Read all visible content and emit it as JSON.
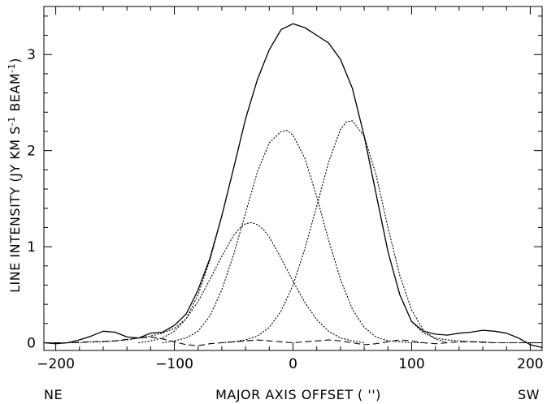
{
  "chart_data": {
    "type": "line",
    "xlabel": "MAJOR AXIS OFFSET ( '')",
    "ylabel": "LINE INTENSITY (JY KM S",
    "ylabel_sup1": "-1",
    "ylabel_mid": " BEAM",
    "ylabel_sup2": "-1",
    "ylabel_end": ")",
    "left_annotation": "NE",
    "right_annotation": "SW",
    "xlim": [
      -210,
      210
    ],
    "ylim": [
      -0.08,
      3.5
    ],
    "x_ticks": [
      -200,
      -100,
      0,
      100,
      200
    ],
    "x_tick_labels": [
      "−200",
      "−100",
      "0",
      "100",
      "200"
    ],
    "y_ticks": [
      0,
      1,
      2,
      3
    ],
    "y_tick_labels": [
      "0",
      "1",
      "2",
      "3"
    ],
    "series": [
      {
        "style": "solid",
        "x": [
          -210,
          -200,
          -190,
          -180,
          -170,
          -160,
          -150,
          -140,
          -130,
          -120,
          -110,
          -100,
          -90,
          -80,
          -70,
          -60,
          -50,
          -40,
          -30,
          -20,
          -10,
          0,
          10,
          20,
          30,
          40,
          50,
          60,
          70,
          80,
          90,
          100,
          110,
          120,
          130,
          140,
          150,
          160,
          170,
          180,
          190,
          200,
          210
        ],
        "y": [
          0.0,
          -0.01,
          0.0,
          0.03,
          0.07,
          0.12,
          0.11,
          0.06,
          0.05,
          0.1,
          0.11,
          0.18,
          0.3,
          0.55,
          0.88,
          1.32,
          1.82,
          2.33,
          2.74,
          3.05,
          3.26,
          3.32,
          3.28,
          3.2,
          3.12,
          2.95,
          2.65,
          2.15,
          1.55,
          0.95,
          0.5,
          0.22,
          0.12,
          0.09,
          0.08,
          0.1,
          0.11,
          0.13,
          0.12,
          0.1,
          0.05,
          -0.02,
          -0.05
        ]
      },
      {
        "style": "dotted",
        "x": [
          -210,
          -200,
          -190,
          -180,
          -170,
          -160,
          -150,
          -140,
          -130,
          -120,
          -110,
          -100,
          -90,
          -80,
          -70,
          -60,
          -50,
          -40,
          -30,
          -20,
          -10,
          0,
          10,
          20,
          30,
          40,
          50,
          60,
          70,
          80,
          90,
          100,
          110,
          120,
          130,
          140,
          150,
          160,
          170,
          180,
          190,
          200,
          210
        ],
        "y": [
          0.0,
          0.0,
          0.0,
          0.0,
          0.01,
          0.01,
          0.02,
          0.03,
          0.05,
          0.07,
          0.1,
          0.15,
          0.25,
          0.5,
          0.86,
          1.32,
          1.82,
          2.33,
          2.74,
          3.05,
          3.26,
          3.32,
          3.28,
          3.2,
          3.12,
          2.95,
          2.65,
          2.15,
          1.55,
          0.95,
          0.5,
          0.22,
          0.1,
          0.05,
          0.03,
          0.02,
          0.01,
          0.01,
          0.0,
          0.0,
          0.0,
          0.0,
          0.0
        ]
      },
      {
        "style": "dotted",
        "x": [
          -130,
          -120,
          -110,
          -100,
          -90,
          -80,
          -70,
          -60,
          -50,
          -45,
          -40,
          -35,
          -30,
          -25,
          -20,
          -10,
          0,
          10,
          20,
          30,
          40,
          50,
          60
        ],
        "y": [
          0.0,
          0.02,
          0.05,
          0.12,
          0.25,
          0.43,
          0.66,
          0.9,
          1.12,
          1.19,
          1.24,
          1.25,
          1.23,
          1.18,
          1.1,
          0.88,
          0.64,
          0.42,
          0.24,
          0.12,
          0.05,
          0.02,
          0.0
        ]
      },
      {
        "style": "dotted",
        "x": [
          -110,
          -100,
          -90,
          -80,
          -70,
          -60,
          -50,
          -40,
          -30,
          -20,
          -10,
          -5,
          0,
          10,
          20,
          30,
          40,
          50,
          60,
          70,
          80,
          90,
          100,
          110
        ],
        "y": [
          0.0,
          0.02,
          0.05,
          0.12,
          0.28,
          0.55,
          0.92,
          1.35,
          1.78,
          2.08,
          2.2,
          2.21,
          2.16,
          1.92,
          1.52,
          1.07,
          0.66,
          0.35,
          0.16,
          0.06,
          0.02,
          0.01,
          0.0,
          0.0
        ]
      },
      {
        "style": "dotted",
        "x": [
          -60,
          -50,
          -40,
          -30,
          -20,
          -10,
          0,
          10,
          20,
          30,
          40,
          45,
          50,
          60,
          70,
          80,
          90,
          100,
          110,
          120,
          130
        ],
        "y": [
          0.0,
          0.01,
          0.03,
          0.07,
          0.16,
          0.33,
          0.6,
          0.98,
          1.42,
          1.88,
          2.22,
          2.3,
          2.31,
          2.15,
          1.75,
          1.2,
          0.7,
          0.34,
          0.13,
          0.04,
          0.0
        ]
      },
      {
        "style": "dashed",
        "x": [
          -210,
          -190,
          -170,
          -150,
          -130,
          -120,
          -110,
          -100,
          -90,
          -80,
          -70,
          -60,
          -50,
          -40,
          -30,
          -20,
          -10,
          0,
          10,
          20,
          30,
          40,
          50,
          60,
          70,
          80,
          90,
          100,
          110,
          120,
          130,
          140,
          150,
          170,
          190,
          210
        ],
        "y": [
          0.0,
          0.0,
          0.01,
          0.02,
          0.05,
          0.06,
          0.04,
          0.01,
          -0.02,
          -0.03,
          -0.01,
          0.0,
          0.01,
          0.02,
          0.03,
          0.02,
          0.01,
          0.0,
          0.01,
          0.02,
          0.03,
          0.02,
          0.0,
          -0.02,
          -0.01,
          0.01,
          0.03,
          0.02,
          0.0,
          -0.01,
          0.0,
          0.01,
          0.01,
          0.0,
          0.0,
          0.0
        ]
      }
    ]
  }
}
